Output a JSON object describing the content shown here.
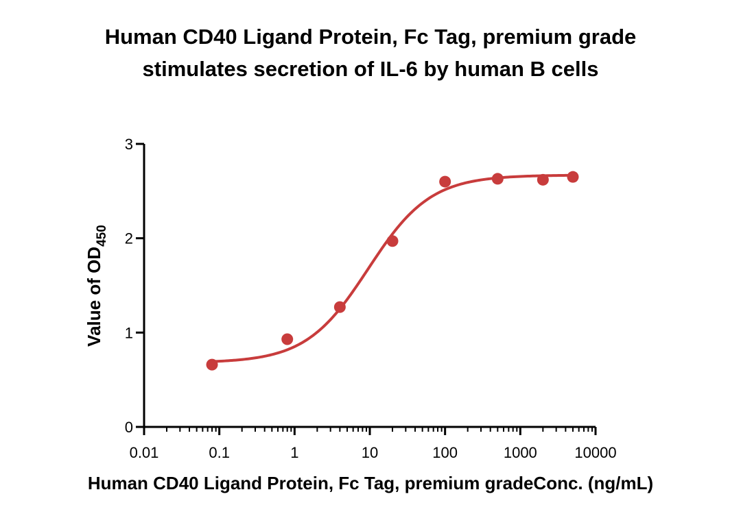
{
  "chart_data": {
    "type": "scatter",
    "title_line1": "Human CD40 Ligand Protein, Fc Tag, premium grade",
    "title_line2": "stimulates secretion of IL-6 by human B cells",
    "xlabel": "Human CD40 Ligand Protein, Fc Tag, premium gradeConc. (ng/mL)",
    "ylabel_main": "Value of OD",
    "ylabel_sub": "450",
    "x_scale": "log10",
    "xlim": [
      0.01,
      10000
    ],
    "ylim": [
      0,
      3
    ],
    "x_ticks": [
      "0.01",
      "0.1",
      "1",
      "10",
      "100",
      "1000",
      "10000"
    ],
    "y_ticks": [
      "0",
      "1",
      "2",
      "3"
    ],
    "series": [
      {
        "name": "OD450",
        "color": "#c83c3c",
        "x": [
          0.08,
          0.8,
          4,
          20,
          100,
          500,
          2000,
          5000
        ],
        "y": [
          0.66,
          0.93,
          1.27,
          1.97,
          2.6,
          2.63,
          2.62,
          2.65
        ]
      }
    ],
    "fit": {
      "model": "4PL",
      "bottom": 0.68,
      "top": 2.67,
      "ec50": 9.5,
      "hill": 1.05,
      "color": "#c83c3c"
    }
  }
}
